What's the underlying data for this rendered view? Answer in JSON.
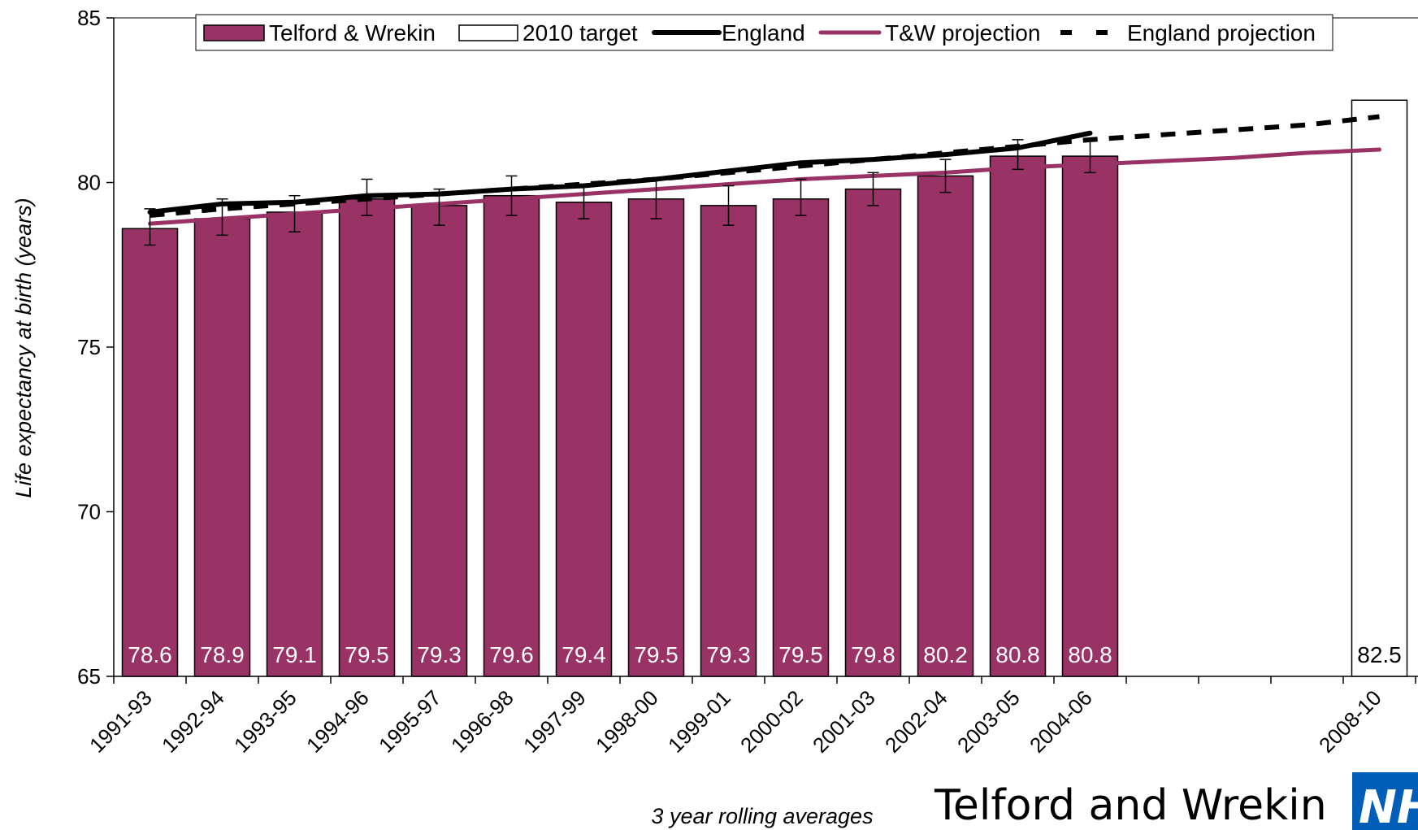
{
  "colors": {
    "bar": "#993366",
    "target_bar": "#ffffff",
    "england": "#000000",
    "tw_projection": "#993366",
    "england_projection": "#000000",
    "nhs_blue": "#005EB8"
  },
  "chart_data": {
    "type": "bar",
    "title": "",
    "xlabel": "3 year rolling averages",
    "ylabel": "Life expectancy at birth (years)",
    "ylim": [
      65,
      85
    ],
    "yticks": [
      65,
      70,
      75,
      80,
      85
    ],
    "grid": false,
    "legend_position": "top",
    "categories": [
      "1991-93",
      "1992-94",
      "1993-95",
      "1994-96",
      "1995-97",
      "1996-98",
      "1997-99",
      "1998-00",
      "1999-01",
      "2000-02",
      "2001-03",
      "2002-04",
      "2003-05",
      "2004-06",
      "",
      "",
      "",
      "2008-10"
    ],
    "series": [
      {
        "name": "Telford & Wrekin",
        "kind": "bar",
        "values": [
          78.6,
          78.9,
          79.1,
          79.5,
          79.3,
          79.6,
          79.4,
          79.5,
          79.3,
          79.5,
          79.8,
          80.2,
          80.8,
          80.8,
          null,
          null,
          null,
          null
        ],
        "labels": [
          "78.6",
          "78.9",
          "79.1",
          "79.5",
          "79.3",
          "79.6",
          "79.4",
          "79.5",
          "79.3",
          "79.5",
          "79.8",
          "80.2",
          "80.8",
          "80.8",
          "",
          "",
          "",
          ""
        ],
        "error_low": [
          78.1,
          78.4,
          78.5,
          79.0,
          78.7,
          79.0,
          78.9,
          78.9,
          78.7,
          79.0,
          79.3,
          79.7,
          80.4,
          80.3,
          null,
          null,
          null,
          null
        ],
        "error_high": [
          79.2,
          79.5,
          79.6,
          80.1,
          79.8,
          80.2,
          79.9,
          80.1,
          79.9,
          80.1,
          80.3,
          80.7,
          81.3,
          81.3,
          null,
          null,
          null,
          null
        ]
      },
      {
        "name": "2010 target",
        "kind": "bar",
        "values": [
          null,
          null,
          null,
          null,
          null,
          null,
          null,
          null,
          null,
          null,
          null,
          null,
          null,
          null,
          null,
          null,
          null,
          82.5
        ],
        "labels": [
          "",
          "",
          "",
          "",
          "",
          "",
          "",
          "",
          "",
          "",
          "",
          "",
          "",
          "",
          "",
          "",
          "",
          "82.5"
        ]
      },
      {
        "name": "England",
        "kind": "line",
        "values": [
          79.1,
          79.35,
          79.4,
          79.6,
          79.65,
          79.8,
          79.9,
          80.1,
          80.35,
          80.6,
          80.7,
          80.85,
          81.05,
          81.5,
          null,
          null,
          null,
          null
        ]
      },
      {
        "name": "T&W projection",
        "kind": "line",
        "values": [
          78.75,
          78.9,
          79.05,
          79.2,
          79.35,
          79.5,
          79.65,
          79.8,
          79.95,
          80.1,
          80.2,
          80.3,
          80.45,
          80.55,
          80.65,
          80.75,
          80.9,
          81.0
        ]
      },
      {
        "name": "England projection",
        "kind": "dashed-line",
        "values": [
          79.0,
          79.2,
          79.35,
          79.5,
          79.65,
          79.8,
          79.95,
          80.1,
          80.3,
          80.5,
          80.7,
          80.9,
          81.1,
          81.3,
          81.45,
          81.6,
          81.75,
          82.0
        ]
      }
    ]
  },
  "footer": {
    "org_name": "Telford and Wrekin",
    "logo_text": "NHS"
  }
}
